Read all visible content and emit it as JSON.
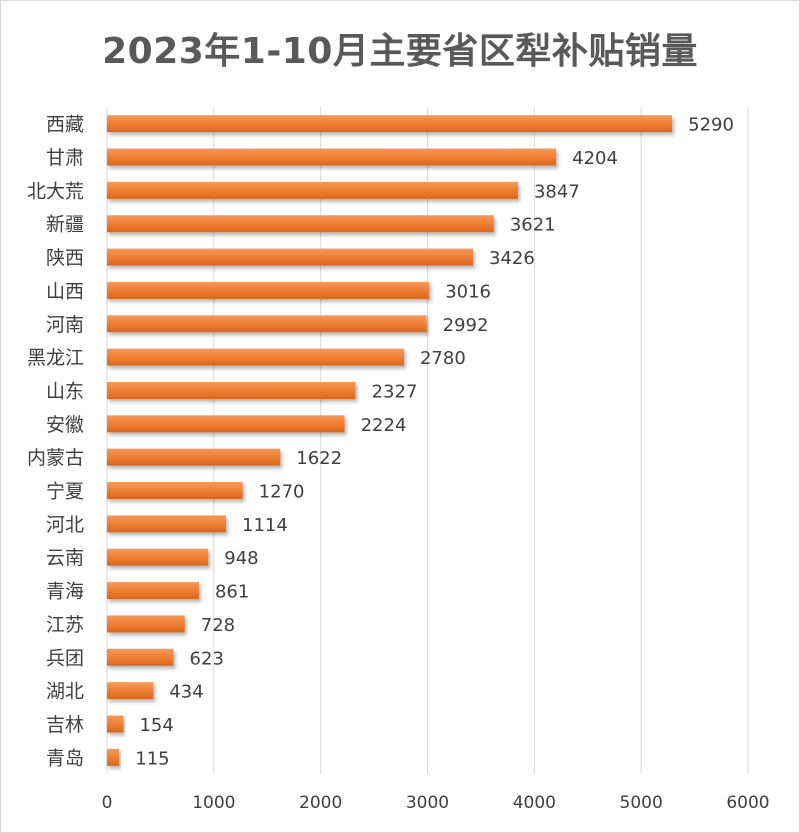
{
  "chart_data": {
    "type": "bar",
    "orientation": "horizontal",
    "title": "2023年1-10月主要省区犁补贴销量",
    "categories": [
      "西藏",
      "甘肃",
      "北大荒",
      "新疆",
      "陕西",
      "山西",
      "河南",
      "黑龙江",
      "山东",
      "安徽",
      "内蒙古",
      "宁夏",
      "河北",
      "云南",
      "青海",
      "江苏",
      "兵团",
      "湖北",
      "吉林",
      "青岛"
    ],
    "values": [
      5290,
      4204,
      3847,
      3621,
      3426,
      3016,
      2992,
      2780,
      2327,
      2224,
      1622,
      1270,
      1114,
      948,
      861,
      728,
      623,
      434,
      154,
      115
    ],
    "xlim": [
      0,
      6000
    ],
    "xticks": [
      0,
      1000,
      2000,
      3000,
      4000,
      5000,
      6000
    ],
    "grid": true,
    "legend": "none",
    "data_labels": true,
    "bar_color": "#ed7d31"
  }
}
